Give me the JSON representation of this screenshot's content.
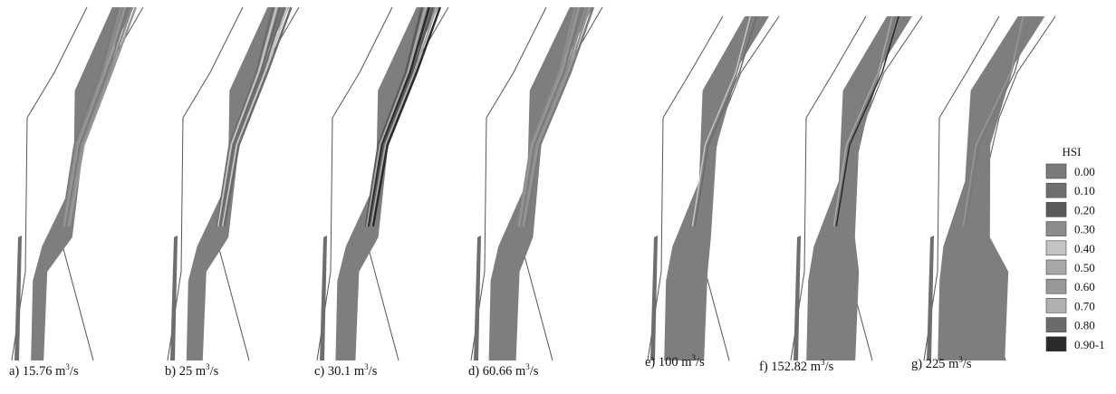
{
  "panels": [
    {
      "caption": "a) 15.76 m³/s",
      "prefix": "a) 15.76 m",
      "sup": "3",
      "suffix": "/s",
      "wet_fraction": 0.18
    },
    {
      "caption": "b) 25 m³/s",
      "prefix": "b) 25 m",
      "sup": "3",
      "suffix": "/s",
      "wet_fraction": 0.22
    },
    {
      "caption": "c) 30.1 m³/s",
      "prefix": "c) 30.1 m",
      "sup": "3",
      "suffix": "/s",
      "wet_fraction": 0.26
    },
    {
      "caption": "d) 60.66 m³/s",
      "prefix": "d) 60.66 m",
      "sup": "3",
      "suffix": "/s",
      "wet_fraction": 0.34
    },
    {
      "caption": "e) 100 m³/s",
      "prefix": "e) 100 m",
      "sup": "3",
      "suffix": "/s",
      "wet_fraction": 0.48
    },
    {
      "caption": "f) 152.82 m³/s",
      "prefix": "f) 152.82 m",
      "sup": "3",
      "suffix": "/s",
      "wet_fraction": 0.58
    },
    {
      "caption": "g) 225 m³/s",
      "prefix": "g) 225 m",
      "sup": "3",
      "suffix": "/s",
      "wet_fraction": 0.78
    }
  ],
  "legend": {
    "title": "HSI",
    "entries": [
      {
        "label": "0.00",
        "color": "#7a7a7a"
      },
      {
        "label": "0.10",
        "color": "#6e6e6e"
      },
      {
        "label": "0.20",
        "color": "#5a5a5a"
      },
      {
        "label": "0.30",
        "color": "#8c8c8c"
      },
      {
        "label": "0.40",
        "color": "#c4c4c4"
      },
      {
        "label": "0.50",
        "color": "#a8a8a8"
      },
      {
        "label": "0.60",
        "color": "#979797"
      },
      {
        "label": "0.70",
        "color": "#b0b0b0"
      },
      {
        "label": "0.80",
        "color": "#6a6a6a"
      },
      {
        "label": "0.90-1",
        "color": "#2a2a2a"
      }
    ]
  }
}
